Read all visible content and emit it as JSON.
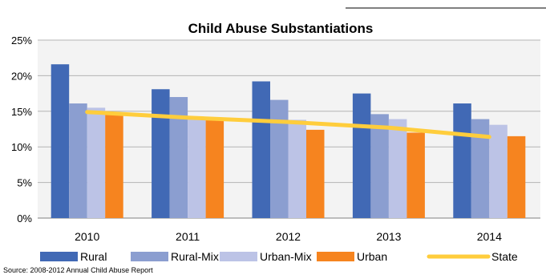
{
  "chart_data": {
    "type": "bar",
    "title": "Child Abuse Substantiations",
    "source": "Source: 2008-2012 Annual Child Abuse Report",
    "categories": [
      "2010",
      "2011",
      "2012",
      "2013",
      "2014"
    ],
    "ylim": [
      0,
      25
    ],
    "yticks": [
      "0%",
      "5%",
      "10%",
      "15%",
      "20%",
      "25%"
    ],
    "grid": true,
    "legend_position": "bottom",
    "series": [
      {
        "name": "Rural",
        "type": "bar",
        "color": "#4169b5",
        "values": [
          21.6,
          18.1,
          19.2,
          17.5,
          16.1
        ]
      },
      {
        "name": "Rural-Mix",
        "type": "bar",
        "color": "#8b9ed0",
        "values": [
          16.1,
          17.0,
          16.6,
          14.6,
          13.9
        ]
      },
      {
        "name": "Urban-Mix",
        "type": "bar",
        "color": "#bcc3e6",
        "values": [
          15.5,
          14.0,
          13.8,
          13.9,
          13.1
        ]
      },
      {
        "name": "Urban",
        "type": "bar",
        "color": "#f6841f",
        "values": [
          14.7,
          14.1,
          12.4,
          12.0,
          11.5
        ]
      },
      {
        "name": "State",
        "type": "line",
        "color": "#ffcd3c",
        "values": [
          14.9,
          14.1,
          13.5,
          12.7,
          11.4
        ]
      }
    ]
  }
}
